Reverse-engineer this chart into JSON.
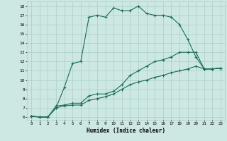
{
  "xlabel": "Humidex (Indice chaleur)",
  "bg_color": "#cde8e3",
  "grid_color": "#a8cdc8",
  "line_color": "#1a6b5a",
  "xlim": [
    -0.5,
    23.5
  ],
  "ylim": [
    5.7,
    18.5
  ],
  "xticks": [
    0,
    1,
    2,
    3,
    4,
    5,
    6,
    7,
    8,
    9,
    10,
    11,
    12,
    13,
    14,
    15,
    16,
    17,
    18,
    19,
    20,
    21,
    22,
    23
  ],
  "yticks": [
    6,
    7,
    8,
    9,
    10,
    11,
    12,
    13,
    14,
    15,
    16,
    17,
    18
  ],
  "series": [
    {
      "x": [
        0,
        1,
        2,
        3,
        4,
        5,
        6,
        7,
        8,
        9,
        10,
        11,
        12,
        13,
        14,
        15,
        16,
        17,
        18,
        19,
        20,
        21,
        22,
        23
      ],
      "y": [
        6.1,
        6.0,
        6.0,
        7.0,
        9.2,
        11.8,
        12.0,
        16.8,
        17.0,
        16.8,
        17.8,
        17.5,
        17.5,
        18.0,
        17.2,
        17.0,
        17.0,
        16.8,
        16.0,
        14.4,
        12.5,
        11.2,
        11.2,
        11.3
      ]
    },
    {
      "x": [
        0,
        1,
        2,
        3,
        4,
        5,
        6,
        7,
        8,
        9,
        10,
        11,
        12,
        13,
        14,
        15,
        16,
        17,
        18,
        19,
        20,
        21,
        22,
        23
      ],
      "y": [
        6.1,
        6.0,
        6.0,
        7.2,
        7.3,
        7.5,
        7.5,
        8.3,
        8.5,
        8.5,
        8.8,
        9.5,
        10.5,
        11.0,
        11.5,
        12.0,
        12.2,
        12.5,
        13.0,
        13.0,
        13.0,
        11.2,
        11.2,
        11.3
      ]
    },
    {
      "x": [
        0,
        1,
        2,
        3,
        4,
        5,
        6,
        7,
        8,
        9,
        10,
        11,
        12,
        13,
        14,
        15,
        16,
        17,
        18,
        19,
        20,
        21,
        22,
        23
      ],
      "y": [
        6.1,
        6.0,
        6.0,
        7.0,
        7.2,
        7.3,
        7.3,
        7.8,
        8.0,
        8.2,
        8.5,
        9.0,
        9.5,
        9.8,
        10.0,
        10.3,
        10.5,
        10.8,
        11.0,
        11.2,
        11.5,
        11.2,
        11.2,
        11.3
      ]
    }
  ]
}
